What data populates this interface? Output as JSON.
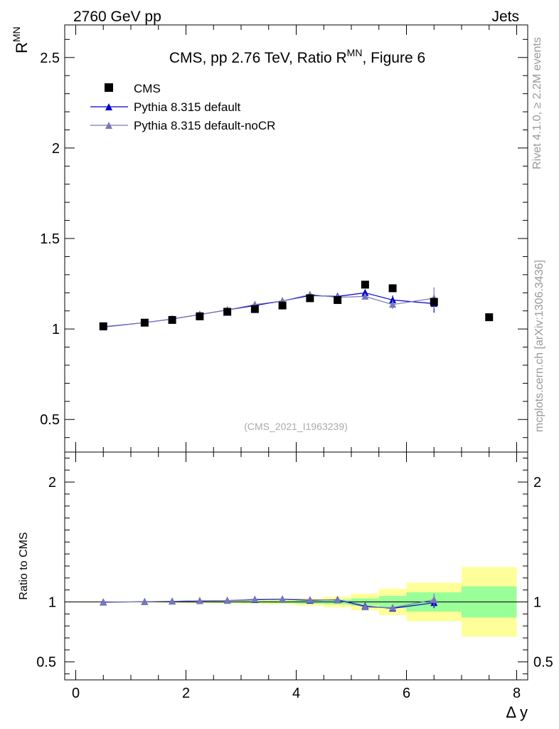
{
  "header": {
    "left": "2760 GeV pp",
    "right": "Jets"
  },
  "side_labels": {
    "rivet": "Rivet 4.1.0, ≥ 2.2M events",
    "mcplots": "mcplots.cern.ch [arXiv:1306.3436]"
  },
  "colors": {
    "cms": "#000000",
    "pythia_default": "#0000cc",
    "pythia_nocr": "#7777bb",
    "band_inner": "#99ff99",
    "band_outer": "#ffff99"
  },
  "chart_data": [
    {
      "type": "scatter",
      "panel": "main",
      "title": "CMS, pp 2.76 TeV, Ratio R",
      "title_sup": "MN",
      "title_suffix": ", Figure 6",
      "ylabel": "R",
      "ylabel_sup": "MN",
      "xlabel": "Δ y",
      "xlim": [
        -0.2,
        8.2
      ],
      "ylim": [
        0.32,
        2.68
      ],
      "yticks": [
        {
          "value": 0.5,
          "label": "0.5"
        },
        {
          "value": 1,
          "label": "1"
        },
        {
          "value": 1.5,
          "label": "1.5"
        },
        {
          "value": 2,
          "label": "2"
        },
        {
          "value": 2.5,
          "label": "2.5"
        }
      ],
      "watermark": "(CMS_2021_I1963239)",
      "legend": [
        {
          "label": "CMS",
          "marker": "square",
          "color": "#000000"
        },
        {
          "label": "Pythia 8.315 default",
          "marker": "triangle",
          "color": "#0000cc"
        },
        {
          "label": "Pythia 8.315 default-noCR",
          "marker": "triangle",
          "color": "#7777bb"
        }
      ],
      "series": [
        {
          "name": "CMS",
          "x": [
            0.5,
            1.25,
            1.75,
            2.25,
            2.75,
            3.25,
            3.75,
            4.25,
            4.75,
            5.25,
            5.75,
            6.5,
            7.5
          ],
          "y": [
            1.015,
            1.035,
            1.05,
            1.07,
            1.095,
            1.11,
            1.13,
            1.17,
            1.16,
            1.245,
            1.225,
            1.15,
            1.065
          ]
        },
        {
          "name": "Pythia 8.315 default",
          "x": [
            0.5,
            1.25,
            1.75,
            2.25,
            2.75,
            3.25,
            3.75,
            4.25,
            4.75,
            5.25,
            5.75,
            6.5
          ],
          "y": [
            1.012,
            1.035,
            1.055,
            1.08,
            1.105,
            1.13,
            1.155,
            1.185,
            1.18,
            1.2,
            1.16,
            1.14
          ],
          "yerr": [
            0.004,
            0.004,
            0.004,
            0.004,
            0.005,
            0.005,
            0.006,
            0.008,
            0.01,
            0.015,
            0.025,
            0.05
          ]
        },
        {
          "name": "Pythia 8.315 default-noCR",
          "x": [
            0.5,
            1.25,
            1.75,
            2.25,
            2.75,
            3.25,
            3.75,
            4.25,
            4.75,
            5.25,
            5.75,
            6.5
          ],
          "y": [
            1.01,
            1.035,
            1.055,
            1.08,
            1.105,
            1.135,
            1.155,
            1.19,
            1.175,
            1.18,
            1.135,
            1.17
          ],
          "yerr": [
            0.004,
            0.004,
            0.004,
            0.004,
            0.005,
            0.005,
            0.006,
            0.008,
            0.01,
            0.015,
            0.025,
            0.06
          ]
        }
      ]
    },
    {
      "type": "scatter",
      "panel": "ratio",
      "ylabel": "Ratio to CMS",
      "xlabel": "Δ y",
      "xlim": [
        -0.2,
        8.2
      ],
      "ylim": [
        0.35,
        2.25
      ],
      "xticks": [
        {
          "value": 0,
          "label": "0"
        },
        {
          "value": 2,
          "label": "2"
        },
        {
          "value": 4,
          "label": "4"
        },
        {
          "value": 6,
          "label": "6"
        },
        {
          "value": 8,
          "label": "8"
        }
      ],
      "yticks": [
        {
          "value": 0.5,
          "label": "0.5"
        },
        {
          "value": 1,
          "label": "1"
        },
        {
          "value": 2,
          "label": "2"
        }
      ],
      "bands": {
        "x_edges": [
          0,
          1,
          1.5,
          2,
          2.5,
          3,
          3.5,
          4,
          4.5,
          5,
          5.5,
          6,
          7,
          8
        ],
        "inner_half": [
          0.002,
          0.003,
          0.004,
          0.005,
          0.006,
          0.008,
          0.01,
          0.015,
          0.02,
          0.03,
          0.05,
          0.08,
          0.13
        ],
        "outer_half": [
          0.004,
          0.006,
          0.008,
          0.01,
          0.012,
          0.016,
          0.02,
          0.03,
          0.045,
          0.07,
          0.11,
          0.16,
          0.29
        ]
      },
      "series": [
        {
          "name": "Pythia 8.315 default",
          "x": [
            0.5,
            1.25,
            1.75,
            2.25,
            2.75,
            3.25,
            3.75,
            4.25,
            4.75,
            5.25,
            5.75,
            6.5
          ],
          "y": [
            0.998,
            1.002,
            1.005,
            1.009,
            1.011,
            1.018,
            1.022,
            1.013,
            1.018,
            0.965,
            0.947,
            0.993
          ],
          "yerr": [
            0.004,
            0.004,
            0.004,
            0.004,
            0.005,
            0.005,
            0.006,
            0.008,
            0.01,
            0.014,
            0.02,
            0.045
          ]
        },
        {
          "name": "Pythia 8.315 default-noCR",
          "x": [
            0.5,
            1.25,
            1.75,
            2.25,
            2.75,
            3.25,
            3.75,
            4.25,
            4.75,
            5.25,
            5.75,
            6.5
          ],
          "y": [
            0.996,
            1.002,
            1.005,
            1.01,
            1.012,
            1.022,
            1.025,
            1.018,
            1.015,
            0.958,
            0.952,
            1.018
          ],
          "yerr": [
            0.004,
            0.004,
            0.004,
            0.004,
            0.005,
            0.005,
            0.006,
            0.008,
            0.01,
            0.014,
            0.02,
            0.05
          ]
        }
      ]
    }
  ]
}
